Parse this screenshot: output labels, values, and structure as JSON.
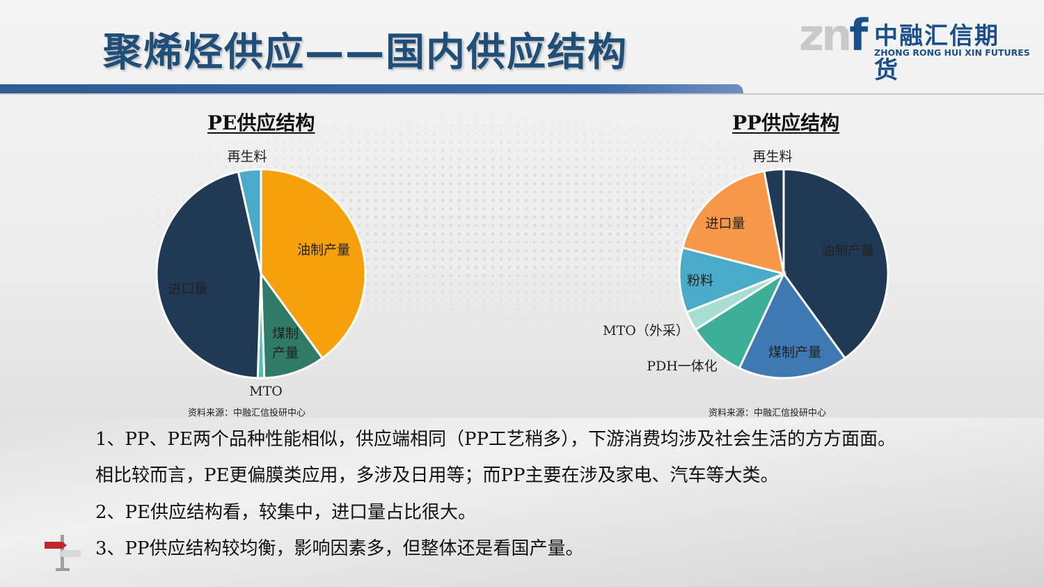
{
  "header": {
    "title": "聚烯烃供应——国内供应结构",
    "logo_mark": "zn",
    "logo_mark_f": "f",
    "logo_cn": "中融汇信期货",
    "logo_en": "ZHONG RONG HUI XIN FUTURES"
  },
  "colors": {
    "title": "#1f4e79",
    "brand": "#1b4f8c",
    "title_bar": "#2f5b96"
  },
  "chart_data": [
    {
      "type": "pie",
      "title": "PE供应结构",
      "source": "资料来源：中融汇信投研中心",
      "slices": [
        {
          "label": "油制产量",
          "value": 40.0,
          "color": "#f6a10c"
        },
        {
          "label": "煤制产量",
          "value": 9.5,
          "color": "#2f7b68"
        },
        {
          "label": "MTO",
          "value": 1.0,
          "color": "#4fc1b4"
        },
        {
          "label": "进口量",
          "value": 46.0,
          "color": "#203a55"
        },
        {
          "label": "再生料",
          "value": 3.5,
          "color": "#4aabc9"
        }
      ]
    },
    {
      "type": "pie",
      "title": "PP供应结构",
      "source": "资料来源：中融汇信投研中心",
      "slices": [
        {
          "label": "油制产量",
          "value": 40.0,
          "color": "#203a55"
        },
        {
          "label": "煤制产量",
          "value": 17.0,
          "color": "#3f79b4"
        },
        {
          "label": "PDH一体化",
          "value": 9.0,
          "color": "#3dae98"
        },
        {
          "label": "MTO（外采）",
          "value": 3.0,
          "color": "#a8ddd1"
        },
        {
          "label": "粉料",
          "value": 10.0,
          "color": "#4aabc9"
        },
        {
          "label": "进口量",
          "value": 18.0,
          "color": "#f6974a"
        },
        {
          "label": "再生料",
          "value": 3.0,
          "color": "#203a55"
        }
      ]
    }
  ],
  "bullets": [
    "1、PP、PE两个品种性能相似，供应端相同（PP工艺稍多），下游消费均涉及社会生活的方方面面。",
    "相比较而言，PE更偏膜类应用，多涉及日用等；而PP主要在涉及家电、汽车等大类。",
    "2、PE供应结构看，较集中，进口量占比很大。",
    "3、PP供应结构较均衡，影响因素多，但整体还是看国产量。"
  ]
}
